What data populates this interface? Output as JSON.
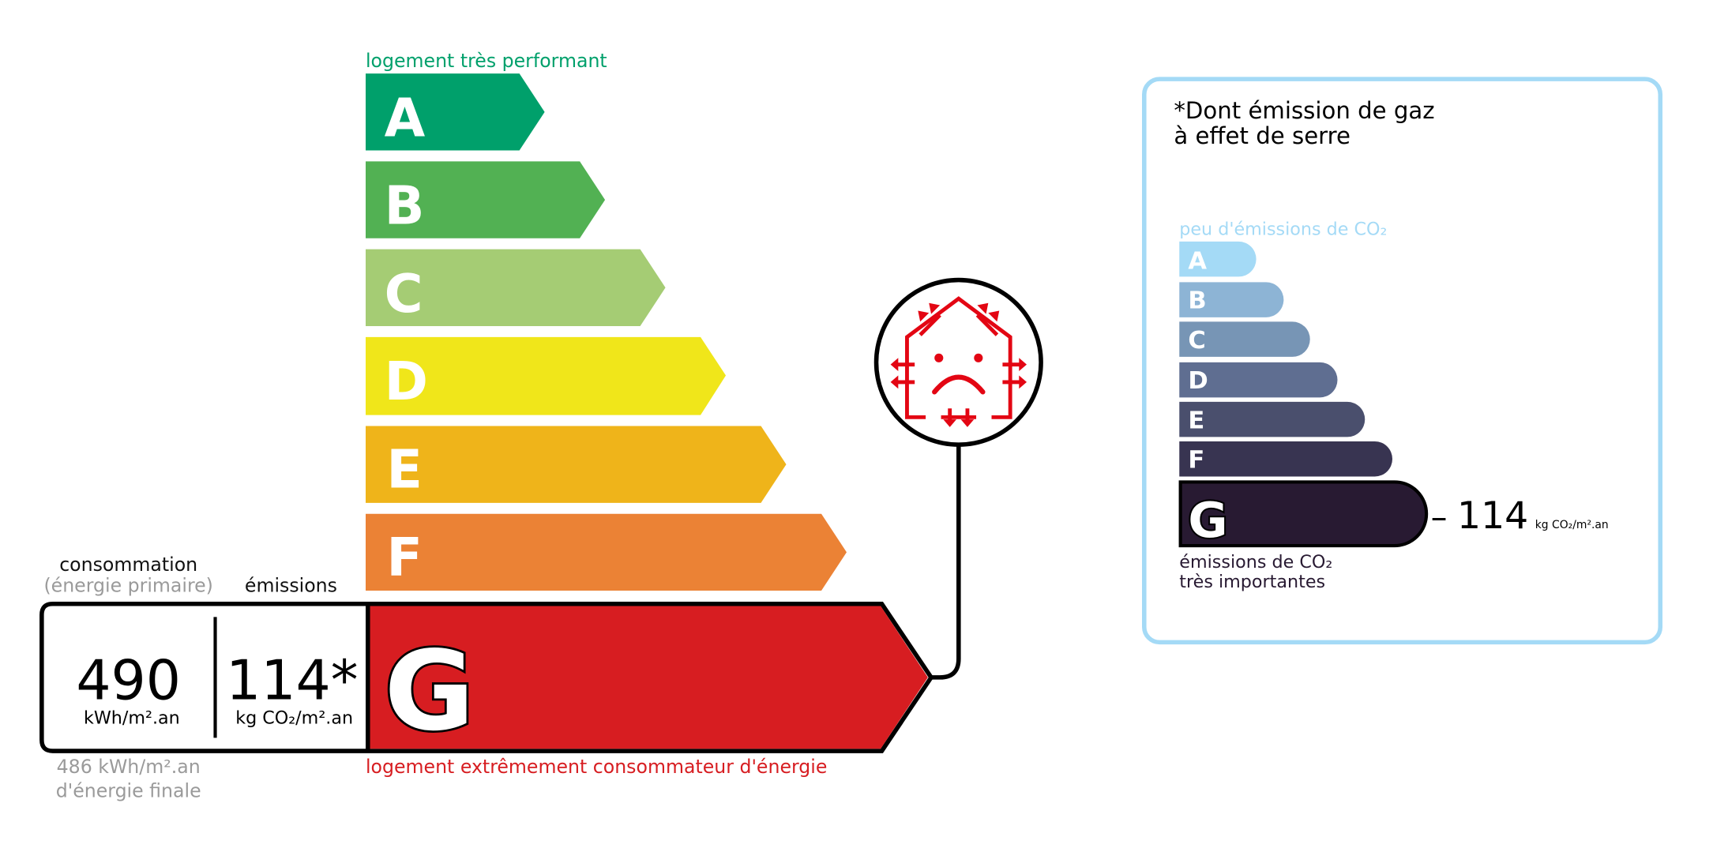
{
  "energy": {
    "top_label": "logement très performant",
    "bottom_label": "logement extrêmement consommateur d'énergie",
    "classes": [
      {
        "letter": "A",
        "color": "#00a06b"
      },
      {
        "letter": "B",
        "color": "#52b153"
      },
      {
        "letter": "C",
        "color": "#a5cc74"
      },
      {
        "letter": "D",
        "color": "#f0e61a"
      },
      {
        "letter": "E",
        "color": "#efb41a"
      },
      {
        "letter": "F",
        "color": "#eb8235"
      },
      {
        "letter": "G",
        "color": "#d71d21"
      }
    ],
    "current_class": "G",
    "consumption_header": "consommation",
    "consumption_sub": "(énergie primaire)",
    "emissions_header": "émissions",
    "consumption_value": "490",
    "consumption_unit": "kWh/m².an",
    "emissions_value": "114*",
    "emissions_unit": "kg CO₂/m².an",
    "final_energy_line1": "486 kWh/m².an",
    "final_energy_line2": "d'énergie finale",
    "icon": "sad-house-heat-loss-icon"
  },
  "ges": {
    "title_line1": "*Dont émission de gaz",
    "title_line2": "à effet de serre",
    "top_label": "peu d'émissions de CO₂",
    "bottom_label_line1": "émissions de CO₂",
    "bottom_label_line2": "très importantes",
    "classes": [
      {
        "letter": "A",
        "color": "#a4daf6"
      },
      {
        "letter": "B",
        "color": "#8db4d5"
      },
      {
        "letter": "C",
        "color": "#7795b5"
      },
      {
        "letter": "D",
        "color": "#5f6e91"
      },
      {
        "letter": "E",
        "color": "#4a4f6d"
      },
      {
        "letter": "F",
        "color": "#383451"
      },
      {
        "letter": "G",
        "color": "#281a32"
      }
    ],
    "current_class": "G",
    "value": "114",
    "value_prefix": "–",
    "unit": "kg CO₂/m².an",
    "border_color": "#a4daf6"
  }
}
